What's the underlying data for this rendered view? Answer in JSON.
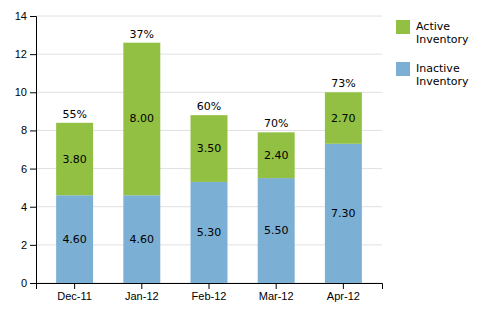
{
  "chart_data": {
    "type": "bar",
    "stacked": true,
    "categories": [
      "Dec-11",
      "Jan-12",
      "Feb-12",
      "Mar-12",
      "Apr-12"
    ],
    "series": [
      {
        "name": "Inactive\nInventory",
        "color": "#7BAFD4",
        "values": [
          4.6,
          4.6,
          5.3,
          5.5,
          7.3
        ],
        "value_labels": [
          "4.60",
          "4.60",
          "5.30",
          "5.50",
          "7.30"
        ]
      },
      {
        "name": "Active\nInventory",
        "color": "#92C042",
        "values": [
          3.8,
          8.0,
          3.5,
          2.4,
          2.7
        ],
        "value_labels": [
          "3.80",
          "8.00",
          "3.50",
          "2.40",
          "2.70"
        ]
      }
    ],
    "annotations": [
      "55%",
      "37%",
      "60%",
      "70%",
      "73%"
    ],
    "ylim": [
      0,
      14
    ],
    "yticks": [
      0,
      2,
      4,
      6,
      8,
      10,
      12,
      14
    ],
    "grid": true,
    "legend": "upper right",
    "data_labels": true
  }
}
